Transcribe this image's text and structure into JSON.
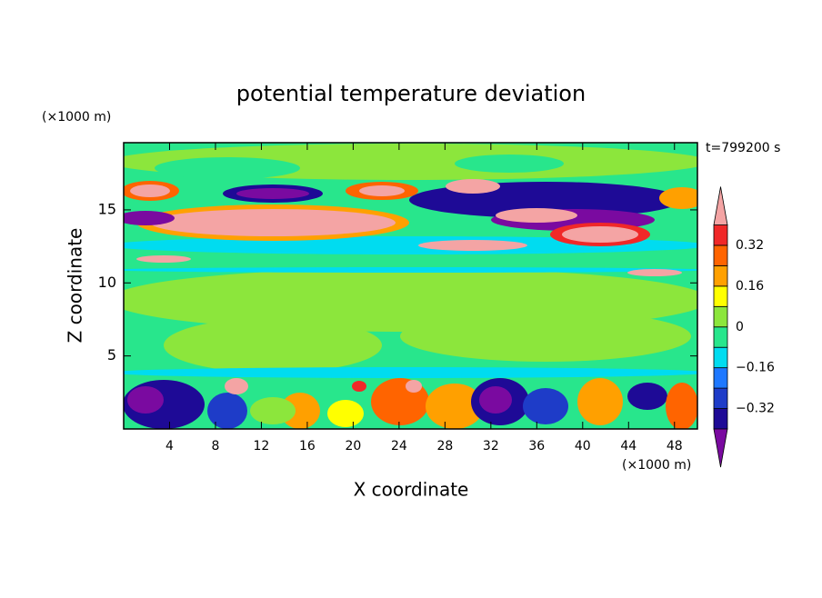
{
  "chart_data": {
    "type": "contour",
    "title": "potential temperature deviation",
    "x_label": "X coordinate",
    "y_label": "Z coordinate",
    "x_unit": "(×1000 m)",
    "y_unit": "(×1000 m)",
    "annotation": "t=799200 s",
    "xlim": [
      0,
      50
    ],
    "xticks": [
      4,
      8,
      12,
      16,
      20,
      24,
      28,
      32,
      36,
      40,
      44,
      48
    ],
    "ylim": [
      0,
      19.6
    ],
    "yticks": [
      5,
      10,
      15
    ],
    "levels": [
      -0.4,
      -0.32,
      -0.24,
      -0.16,
      -0.08,
      0,
      0.08,
      0.16,
      0.24,
      0.32,
      0.4
    ],
    "colors": [
      "#7a0aa0",
      "#1e0a96",
      "#1e3cc8",
      "#1e78ff",
      "#00dcf0",
      "#28e68c",
      "#8ce63c",
      "#ffff00",
      "#ffa000",
      "#ff6400",
      "#f02828",
      "#f4a4a4"
    ],
    "colorbar_ticks": [
      {
        "value": -0.32,
        "label": "−0.32"
      },
      {
        "value": -0.16,
        "label": "−0.16"
      },
      0,
      0.16,
      0.32
    ]
  }
}
